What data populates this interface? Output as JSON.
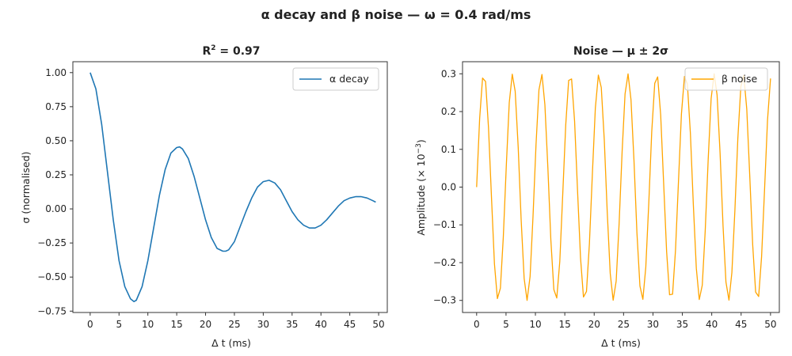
{
  "figure": {
    "title": "α decay and β noise — ω = 0.4 rad/ms"
  },
  "chart_data": [
    {
      "type": "line",
      "title": "R² = 0.97",
      "title_main": "R",
      "title_sup": "2",
      "title_rest": " = 0.97",
      "xlabel": "Δ t (ms)",
      "ylabel": "σ (normalised)",
      "xlim": [
        -3,
        51.5
      ],
      "ylim": [
        -0.76,
        1.08
      ],
      "xticks": [
        0,
        5,
        10,
        15,
        20,
        25,
        30,
        35,
        40,
        45,
        50
      ],
      "yticks": [
        1.0,
        0.75,
        0.5,
        0.25,
        0.0,
        -0.25,
        -0.5,
        -0.75
      ],
      "ytick_labels": [
        "1.00",
        "0.75",
        "0.50",
        "0.25",
        "0.00",
        "−0.25",
        "−0.50",
        "−0.75"
      ],
      "legend_position": "top-right",
      "grid": false,
      "series": [
        {
          "name": "α decay",
          "color": "#1f77b4",
          "x": [
            0,
            1,
            2,
            3,
            4,
            5,
            6,
            7,
            7.6,
            8,
            9,
            10,
            11,
            12,
            13,
            14,
            15,
            15.5,
            16,
            17,
            18,
            19,
            20,
            21,
            22,
            23,
            23.5,
            24,
            25,
            26,
            27,
            28,
            29,
            30,
            31,
            32,
            33,
            34,
            35,
            36,
            37,
            38,
            39,
            40,
            41,
            42,
            43,
            44,
            45,
            46,
            47,
            48,
            49,
            49.5
          ],
          "y": [
            1.0,
            0.88,
            0.62,
            0.27,
            -0.08,
            -0.38,
            -0.57,
            -0.66,
            -0.68,
            -0.67,
            -0.57,
            -0.38,
            -0.14,
            0.1,
            0.29,
            0.41,
            0.45,
            0.455,
            0.44,
            0.37,
            0.24,
            0.08,
            -0.08,
            -0.21,
            -0.29,
            -0.31,
            -0.31,
            -0.3,
            -0.24,
            -0.13,
            -0.02,
            0.08,
            0.16,
            0.2,
            0.21,
            0.19,
            0.14,
            0.06,
            -0.02,
            -0.08,
            -0.12,
            -0.14,
            -0.14,
            -0.12,
            -0.08,
            -0.03,
            0.02,
            0.06,
            0.08,
            0.09,
            0.09,
            0.08,
            0.06,
            0.05
          ]
        }
      ]
    },
    {
      "type": "line",
      "title": "Noise — μ ± 2σ",
      "xlabel": "Δ t (ms)",
      "ylabel": "Amplitude (× 10⁻³)",
      "ylabel_main": "Amplitude (× 10",
      "ylabel_sup": "−3",
      "ylabel_end": ")",
      "xlim": [
        -2.4,
        51.5
      ],
      "ylim": [
        -0.332,
        0.332
      ],
      "xticks": [
        0,
        5,
        10,
        15,
        20,
        25,
        30,
        35,
        40,
        45,
        50
      ],
      "yticks": [
        0.3,
        0.2,
        0.1,
        0.0,
        -0.1,
        -0.2,
        -0.3
      ],
      "ytick_labels": [
        "0.3",
        "0.2",
        "0.1",
        "0.0",
        "−0.1",
        "−0.2",
        "−0.3"
      ],
      "legend_position": "top-right",
      "grid": false,
      "series": [
        {
          "name": "β noise",
          "color": "#ffa500",
          "period_ms": 4.9,
          "amplitude": 0.3,
          "x_start": 0,
          "x_end": 50,
          "samples": 100
        }
      ]
    }
  ]
}
